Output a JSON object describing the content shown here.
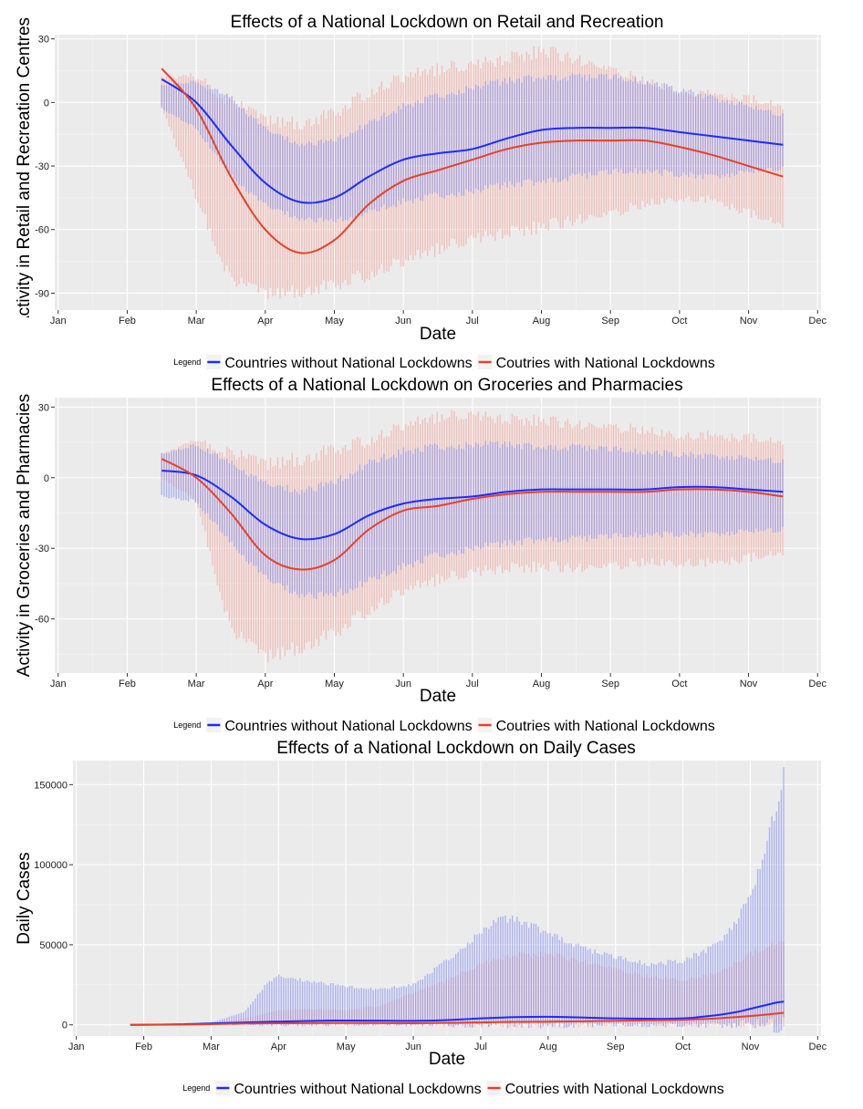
{
  "chart_data": [
    {
      "type": "line",
      "title": "Effects of a National Lockdown on Retail and Recreation",
      "xlabel": "Date",
      "ylabel": "Activity in Retail and Recreation Centres",
      "x_ticks": [
        "Jan",
        "Feb",
        "Mar",
        "Apr",
        "May",
        "Jun",
        "Jul",
        "Aug",
        "Sep",
        "Oct",
        "Nov",
        "Dec"
      ],
      "y_ticks": [
        30,
        0,
        -30,
        -60,
        -90
      ],
      "ylim": [
        -98,
        32
      ],
      "xlim_months": [
        0,
        11
      ],
      "legend": {
        "title": "Legend",
        "position": "bottom"
      },
      "series": [
        {
          "name": "Countries without National Lockdowns",
          "color": "#1c2bff",
          "band_color": "#7b86f0",
          "x": [
            1.5,
            2.0,
            2.5,
            3.0,
            3.5,
            4.0,
            4.5,
            5.0,
            5.5,
            6.0,
            6.5,
            7.0,
            7.5,
            8.0,
            8.5,
            9.0,
            9.5,
            10.0,
            10.5
          ],
          "values": [
            11,
            0,
            -20,
            -38,
            -47,
            -45,
            -35,
            -27,
            -24,
            -22,
            -17,
            -13,
            -12,
            -12,
            -12,
            -14,
            -16,
            -18,
            -20
          ],
          "band_low": [
            -3,
            -12,
            -35,
            -48,
            -55,
            -56,
            -52,
            -47,
            -44,
            -42,
            -39,
            -37,
            -35,
            -33,
            -32,
            -34,
            -35,
            -33,
            -31
          ],
          "band_high": [
            8,
            10,
            2,
            -12,
            -20,
            -18,
            -10,
            -2,
            3,
            7,
            10,
            12,
            12,
            12,
            10,
            6,
            2,
            -2,
            -6
          ]
        },
        {
          "name": "Coutries with National Lockdowns",
          "color": "#e8402a",
          "band_color": "#f4a49a",
          "x": [
            1.5,
            2.0,
            2.5,
            3.0,
            3.5,
            4.0,
            4.5,
            5.0,
            5.5,
            6.0,
            6.5,
            7.0,
            7.5,
            8.0,
            8.5,
            9.0,
            9.5,
            10.0,
            10.5
          ],
          "values": [
            16,
            -3,
            -35,
            -60,
            -71,
            -65,
            -48,
            -37,
            -32,
            -27,
            -22,
            -19,
            -18,
            -18,
            -18,
            -21,
            -25,
            -30,
            -35
          ],
          "band_low": [
            -2,
            -45,
            -84,
            -90,
            -89,
            -86,
            -81,
            -75,
            -69,
            -64,
            -61,
            -59,
            -55,
            -52,
            -48,
            -45,
            -46,
            -52,
            -58
          ],
          "band_high": [
            12,
            12,
            0,
            -8,
            -10,
            -5,
            5,
            12,
            16,
            18,
            21,
            24,
            21,
            16,
            10,
            5,
            4,
            2,
            -2
          ]
        }
      ]
    },
    {
      "type": "line",
      "title": "Effects of a National Lockdown on Groceries and Pharmacies",
      "xlabel": "Date",
      "ylabel": "Activity in Groceries and Pharmacies",
      "x_ticks": [
        "Jan",
        "Feb",
        "Mar",
        "Apr",
        "May",
        "Jun",
        "Jul",
        "Aug",
        "Sep",
        "Oct",
        "Nov",
        "Dec"
      ],
      "y_ticks": [
        30,
        0,
        -30,
        -60
      ],
      "ylim": [
        -83,
        34
      ],
      "xlim_months": [
        0,
        11
      ],
      "legend": {
        "title": "Legend",
        "position": "bottom"
      },
      "series": [
        {
          "name": "Countries without National Lockdowns",
          "color": "#1c2bff",
          "band_color": "#7b86f0",
          "x": [
            1.5,
            2.0,
            2.5,
            3.0,
            3.5,
            4.0,
            4.5,
            5.0,
            5.5,
            6.0,
            6.5,
            7.0,
            7.5,
            8.0,
            8.5,
            9.0,
            9.5,
            10.0,
            10.5
          ],
          "values": [
            3,
            1,
            -8,
            -20,
            -26,
            -24,
            -16,
            -11,
            -9,
            -8,
            -6,
            -5,
            -5,
            -5,
            -5,
            -4,
            -4,
            -5,
            -6
          ],
          "band_low": [
            -8,
            -10,
            -28,
            -42,
            -50,
            -50,
            -44,
            -38,
            -33,
            -30,
            -28,
            -26,
            -26,
            -25,
            -24,
            -24,
            -24,
            -23,
            -22
          ],
          "band_high": [
            10,
            14,
            6,
            -2,
            -6,
            -2,
            6,
            11,
            13,
            14,
            14,
            13,
            13,
            12,
            11,
            10,
            9,
            8,
            7
          ]
        },
        {
          "name": "Coutries with National Lockdowns",
          "color": "#e8402a",
          "band_color": "#f4a49a",
          "x": [
            1.5,
            2.0,
            2.5,
            3.0,
            3.5,
            4.0,
            4.5,
            5.0,
            5.5,
            6.0,
            6.5,
            7.0,
            7.5,
            8.0,
            8.5,
            9.0,
            9.5,
            10.0,
            10.5
          ],
          "values": [
            8,
            0,
            -15,
            -33,
            -39,
            -35,
            -22,
            -14,
            -12,
            -9,
            -7,
            -6,
            -6,
            -6,
            -6,
            -5,
            -5,
            -6,
            -8
          ],
          "band_low": [
            0,
            -10,
            -65,
            -76,
            -72,
            -66,
            -56,
            -48,
            -43,
            -40,
            -38,
            -38,
            -38,
            -37,
            -36,
            -36,
            -36,
            -34,
            -32
          ],
          "band_high": [
            10,
            16,
            10,
            6,
            8,
            12,
            16,
            22,
            26,
            27,
            25,
            24,
            23,
            22,
            20,
            18,
            18,
            17,
            15
          ]
        }
      ]
    },
    {
      "type": "line",
      "title": "Effects of a National Lockdown on Daily Cases",
      "xlabel": "Date",
      "ylabel": "Daily Cases",
      "x_ticks": [
        "Jan",
        "Feb",
        "Mar",
        "Apr",
        "May",
        "Jun",
        "Jul",
        "Aug",
        "Sep",
        "Oct",
        "Nov",
        "Dec"
      ],
      "y_ticks": [
        150000,
        100000,
        50000,
        0
      ],
      "ylim": [
        -7000,
        165000
      ],
      "xlim_months": [
        0,
        11
      ],
      "legend": {
        "title": "Legend",
        "position": "bottom"
      },
      "series": [
        {
          "name": "Countries without National Lockdowns",
          "color": "#1c2bff",
          "band_color": "#7b86f0",
          "x": [
            0.8,
            1.5,
            2.0,
            2.5,
            2.8,
            3.0,
            3.2,
            3.5,
            4.0,
            4.5,
            5.0,
            5.5,
            6.0,
            6.3,
            6.5,
            7.0,
            7.5,
            8.0,
            8.5,
            9.0,
            9.5,
            9.8,
            10.0,
            10.2,
            10.4,
            10.5
          ],
          "values": [
            0,
            300,
            900,
            1500,
            1800,
            2000,
            2200,
            2500,
            2700,
            2600,
            2500,
            3000,
            4000,
            4500,
            4800,
            5000,
            4600,
            4000,
            3800,
            4000,
            6000,
            8000,
            10000,
            12000,
            14000,
            14500
          ],
          "band_low": [
            0,
            0,
            0,
            0,
            0,
            0,
            0,
            0,
            0,
            0,
            0,
            0,
            0,
            0,
            0,
            0,
            0,
            0,
            0,
            0,
            0,
            0,
            0,
            0,
            0,
            0
          ],
          "band_high": [
            0,
            500,
            1500,
            8000,
            25000,
            31000,
            29000,
            27000,
            24000,
            22000,
            25000,
            40000,
            58000,
            66000,
            66000,
            58000,
            48000,
            42000,
            38000,
            40000,
            50000,
            65000,
            80000,
            105000,
            140000,
            157000
          ]
        },
        {
          "name": "Coutries with National Lockdowns",
          "color": "#e8402a",
          "band_color": "#f4a49a",
          "x": [
            0.8,
            1.5,
            2.0,
            2.5,
            3.0,
            3.5,
            4.0,
            4.5,
            5.0,
            5.5,
            6.0,
            6.5,
            7.0,
            7.5,
            8.0,
            8.5,
            9.0,
            9.5,
            10.0,
            10.5
          ],
          "values": [
            0,
            100,
            400,
            800,
            1000,
            1100,
            1200,
            1100,
            1000,
            1200,
            1500,
            1800,
            2000,
            2200,
            2500,
            2800,
            3200,
            4000,
            5500,
            7500
          ],
          "band_low": [
            0,
            0,
            0,
            0,
            0,
            0,
            0,
            0,
            0,
            0,
            0,
            0,
            0,
            0,
            0,
            0,
            0,
            0,
            0,
            0
          ],
          "band_high": [
            0,
            200,
            1000,
            4000,
            9000,
            10000,
            9000,
            12000,
            20000,
            28000,
            38000,
            44000,
            44000,
            40000,
            35000,
            30000,
            28000,
            32000,
            44000,
            53000
          ]
        }
      ]
    }
  ]
}
